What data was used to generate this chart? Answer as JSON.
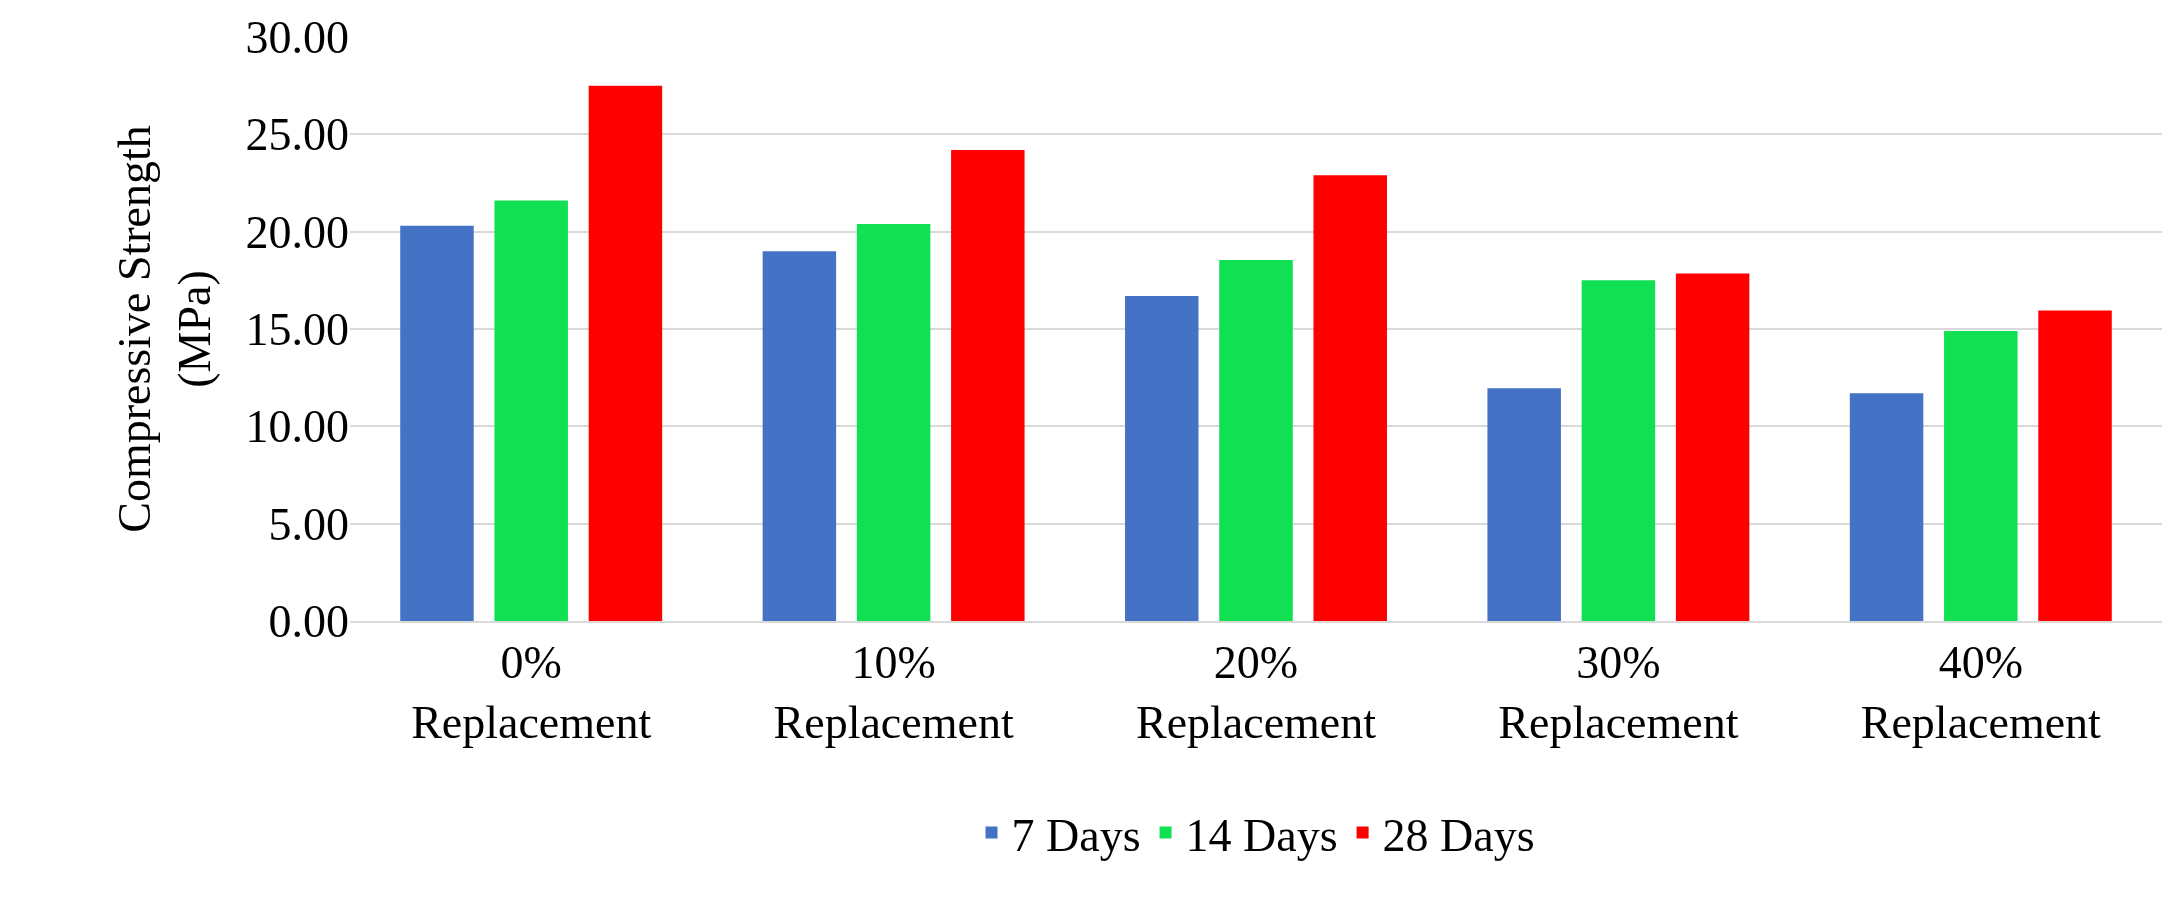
{
  "chart_data": {
    "type": "bar",
    "ylabel": "Compressive Strength (MPa)",
    "categories": [
      "0% Replacement",
      "10% Replacement",
      "20% Replacement",
      "30% Replacement",
      "40% Replacement"
    ],
    "series": [
      {
        "name": "7 Days",
        "color": "#4472c4",
        "values": [
          20.3,
          19.0,
          16.7,
          11.95,
          11.7
        ]
      },
      {
        "name": "14 Days",
        "color": "#11e052",
        "values": [
          21.6,
          20.4,
          18.55,
          17.5,
          14.9
        ]
      },
      {
        "name": "28 Days",
        "color": "#ff0000",
        "values": [
          27.5,
          24.2,
          22.9,
          17.85,
          15.95
        ]
      }
    ],
    "ylim": [
      0,
      30
    ],
    "yticks": [
      {
        "value": 0,
        "label": "0.00"
      },
      {
        "value": 5,
        "label": "5.00"
      },
      {
        "value": 10,
        "label": "10.00"
      },
      {
        "value": 15,
        "label": "15.00"
      },
      {
        "value": 20,
        "label": "20.00"
      },
      {
        "value": 25,
        "label": "25.00"
      },
      {
        "value": 30,
        "label": "30.00"
      }
    ],
    "grid": "y",
    "legend": "bottom"
  }
}
